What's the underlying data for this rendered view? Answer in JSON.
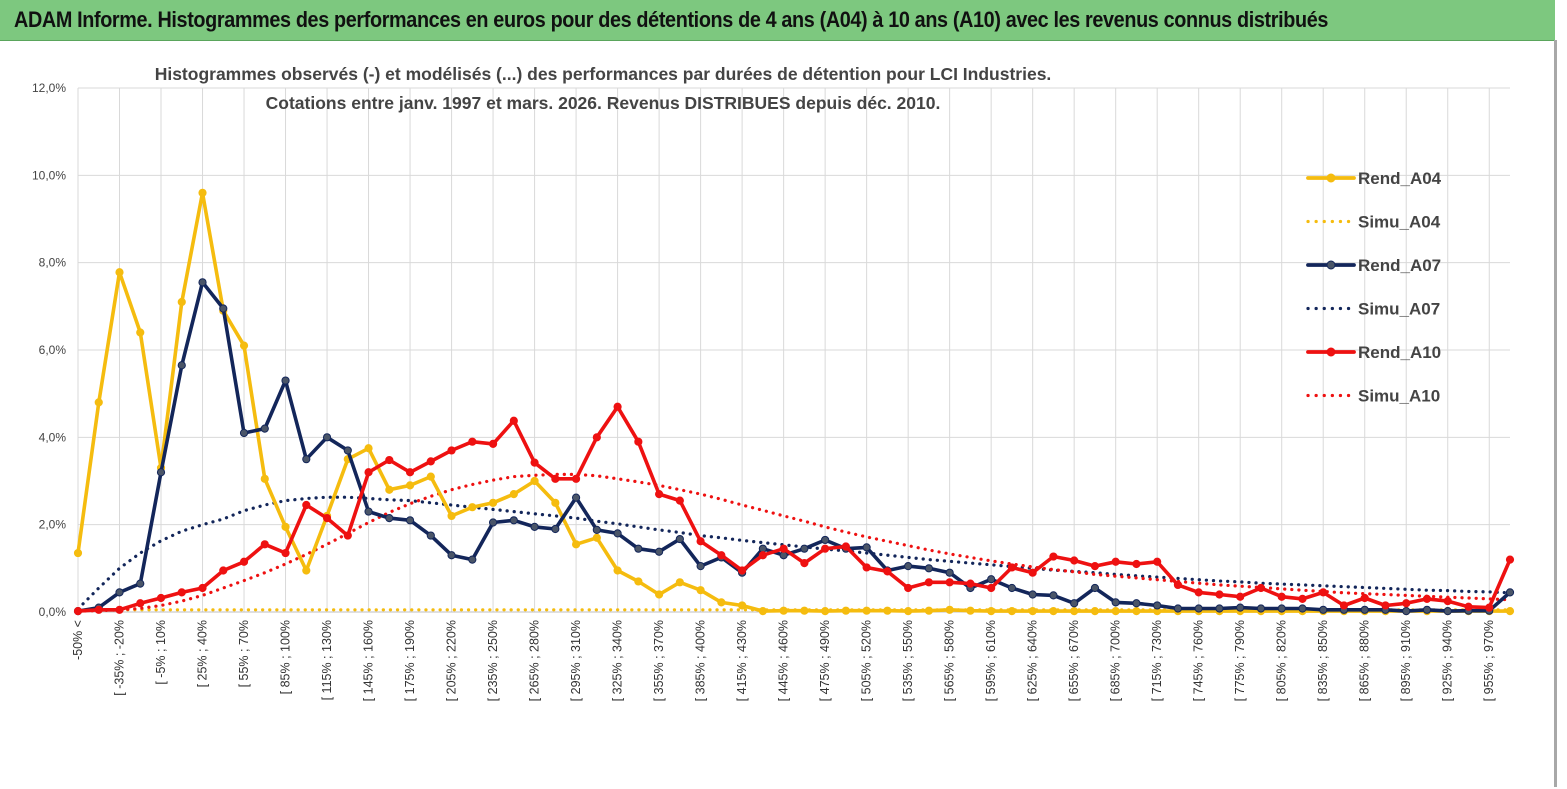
{
  "banner": {
    "title": "ADAM Informe. Histogrammes des performances en euros pour des détentions de 4 ans (A04) à 10 ans (A10) avec les revenus connus distribués"
  },
  "chart_data": {
    "type": "line",
    "title": [
      "Histogrammes observés (-) et modélisés (...) des performances par durées de détention pour LCI Industries.",
      "Cotations entre janv. 1997 et mars. 2026. Revenus DISTRIBUES depuis déc. 2010."
    ],
    "ylim": [
      0,
      12
    ],
    "yticks": [
      "0,0%",
      "2,0%",
      "4,0%",
      "6,0%",
      "8,0%",
      "10,0%",
      "12,0%"
    ],
    "xtick_labels": [
      "-50% <",
      "[ -35% ; -20%",
      "[ -5% ; 10%",
      "[ 25% ; 40%",
      "[ 55% ; 70%",
      "[ 85% ; 100%",
      "[ 115% ; 130%",
      "[ 145% ; 160%",
      "[ 175% ; 190%",
      "[ 205% ; 220%",
      "[ 235% ; 250%",
      "[ 265% ; 280%",
      "[ 295% ; 310%",
      "[ 325% ; 340%",
      "[ 355% ; 370%",
      "[ 385% ; 400%",
      "[ 415% ; 430%",
      "[ 445% ; 460%",
      "[ 475% ; 490%",
      "[ 505% ; 520%",
      "[ 535% ; 550%",
      "[ 565% ; 580%",
      "[ 595% ; 610%",
      "[ 625% ; 640%",
      "[ 655% ; 670%",
      "[ 685% ; 700%",
      "[ 715% ; 730%",
      "[ 745% ; 760%",
      "[ 775% ; 790%",
      "[ 805% ; 820%",
      "[ 835% ; 850%",
      "[ 865% ; 880%",
      "[ 895% ; 910%",
      "[ 925% ; 940%",
      "[ 955% ; 970%"
    ],
    "n_points": 70,
    "grid": true,
    "legend_position": "right",
    "series": [
      {
        "name": "Rend_A04",
        "style": "solid",
        "color": "#f5bc0f",
        "values": [
          1.35,
          4.8,
          7.78,
          6.4,
          3.3,
          7.1,
          9.6,
          6.9,
          6.1,
          3.05,
          1.95,
          0.95,
          2.2,
          3.5,
          3.75,
          2.8,
          2.9,
          3.1,
          2.2,
          2.4,
          2.5,
          2.7,
          3.0,
          2.5,
          1.55,
          1.7,
          0.95,
          0.7,
          0.4,
          0.68,
          0.5,
          0.22,
          0.15,
          0.02,
          0.03,
          0.03,
          0.02,
          0.03,
          0.03,
          0.03,
          0.02,
          0.03,
          0.05,
          0.03,
          0.02,
          0.02,
          0.02,
          0.02,
          0.02,
          0.02,
          0.02,
          0.02,
          0.02,
          0.02,
          0.02,
          0.02,
          0.02,
          0.02,
          0.02,
          0.02,
          0.02,
          0.02,
          0.02,
          0.02,
          0.02,
          0.02,
          0.02,
          0.02,
          0.02,
          0.02
        ]
      },
      {
        "name": "Simu_A04",
        "style": "dotted",
        "color": "#f5bc0f",
        "values": [
          0.05,
          0.05,
          0.05,
          0.05,
          0.05,
          0.05,
          0.05,
          0.05,
          0.05,
          0.05,
          0.05,
          0.05,
          0.05,
          0.05,
          0.05,
          0.05,
          0.05,
          0.05,
          0.05,
          0.05,
          0.05,
          0.05,
          0.05,
          0.05,
          0.05,
          0.05,
          0.05,
          0.05,
          0.05,
          0.05,
          0.05,
          0.05,
          0.05,
          0.05,
          0.05,
          0.05,
          0.05,
          0.05,
          0.05,
          0.05,
          0.05,
          0.05,
          0.05,
          0.05,
          0.05,
          0.05,
          0.05,
          0.05,
          0.05,
          0.05,
          0.05,
          0.05,
          0.05,
          0.05,
          0.05,
          0.05,
          0.05,
          0.05,
          0.05,
          0.05,
          0.05,
          0.05,
          0.05,
          0.05,
          0.05,
          0.05,
          0.05,
          0.05,
          0.05,
          0.05
        ]
      },
      {
        "name": "Rend_A07",
        "style": "solid",
        "color": "#13265a",
        "values": [
          0.02,
          0.1,
          0.45,
          0.65,
          3.2,
          5.65,
          7.55,
          6.95,
          4.1,
          4.2,
          5.3,
          3.5,
          4.0,
          3.7,
          2.3,
          2.15,
          2.1,
          1.75,
          1.3,
          1.2,
          2.05,
          2.1,
          1.95,
          1.9,
          2.62,
          1.88,
          1.8,
          1.45,
          1.38,
          1.67,
          1.05,
          1.25,
          0.9,
          1.45,
          1.3,
          1.45,
          1.65,
          1.45,
          1.48,
          0.95,
          1.05,
          1.0,
          0.9,
          0.55,
          0.75,
          0.55,
          0.4,
          0.38,
          0.2,
          0.55,
          0.22,
          0.2,
          0.15,
          0.08,
          0.08,
          0.08,
          0.1,
          0.08,
          0.08,
          0.08,
          0.05,
          0.05,
          0.05,
          0.05,
          0.02,
          0.05,
          0.02,
          0.03,
          0.03,
          0.45
        ]
      },
      {
        "name": "Simu_A07",
        "style": "dotted",
        "color": "#13265a",
        "values": [
          0.07,
          0.55,
          1.0,
          1.35,
          1.63,
          1.85,
          2.0,
          2.13,
          2.32,
          2.45,
          2.55,
          2.6,
          2.63,
          2.63,
          2.6,
          2.57,
          2.55,
          2.5,
          2.45,
          2.4,
          2.35,
          2.3,
          2.25,
          2.2,
          2.15,
          2.08,
          2.02,
          1.95,
          1.88,
          1.82,
          1.75,
          1.7,
          1.64,
          1.59,
          1.54,
          1.49,
          1.44,
          1.4,
          1.35,
          1.3,
          1.25,
          1.2,
          1.16,
          1.12,
          1.08,
          1.04,
          1.0,
          0.96,
          0.93,
          0.9,
          0.86,
          0.83,
          0.8,
          0.77,
          0.74,
          0.71,
          0.69,
          0.66,
          0.64,
          0.62,
          0.6,
          0.58,
          0.56,
          0.54,
          0.52,
          0.5,
          0.49,
          0.47,
          0.46,
          0.44
        ]
      },
      {
        "name": "Rend_A10",
        "style": "solid",
        "color": "#ee1111",
        "values": [
          0.02,
          0.05,
          0.05,
          0.2,
          0.32,
          0.45,
          0.55,
          0.95,
          1.15,
          1.55,
          1.35,
          2.45,
          2.15,
          1.75,
          3.2,
          3.48,
          3.2,
          3.45,
          3.7,
          3.9,
          3.85,
          4.38,
          3.42,
          3.05,
          3.05,
          4.0,
          4.7,
          3.9,
          2.7,
          2.55,
          1.62,
          1.3,
          0.95,
          1.3,
          1.45,
          1.12,
          1.45,
          1.5,
          1.02,
          0.93,
          0.55,
          0.68,
          0.68,
          0.65,
          0.55,
          1.02,
          0.9,
          1.27,
          1.18,
          1.05,
          1.15,
          1.1,
          1.15,
          0.62,
          0.45,
          0.4,
          0.35,
          0.55,
          0.35,
          0.3,
          0.45,
          0.15,
          0.32,
          0.15,
          0.2,
          0.3,
          0.25,
          0.12,
          0.1,
          1.2
        ]
      },
      {
        "name": "Simu_A10",
        "style": "dotted",
        "color": "#ee1111",
        "values": [
          0.02,
          0.03,
          0.05,
          0.08,
          0.15,
          0.25,
          0.38,
          0.55,
          0.72,
          0.9,
          1.1,
          1.32,
          1.55,
          1.8,
          2.05,
          2.28,
          2.48,
          2.65,
          2.8,
          2.92,
          3.02,
          3.1,
          3.13,
          3.15,
          3.15,
          3.12,
          3.05,
          2.98,
          2.9,
          2.8,
          2.7,
          2.58,
          2.45,
          2.33,
          2.2,
          2.08,
          1.95,
          1.83,
          1.72,
          1.62,
          1.52,
          1.42,
          1.33,
          1.25,
          1.17,
          1.1,
          1.03,
          0.97,
          0.92,
          0.86,
          0.82,
          0.78,
          0.74,
          0.7,
          0.66,
          0.62,
          0.59,
          0.56,
          0.53,
          0.5,
          0.47,
          0.44,
          0.42,
          0.4,
          0.38,
          0.36,
          0.34,
          0.32,
          0.3,
          0.28
        ]
      }
    ]
  }
}
